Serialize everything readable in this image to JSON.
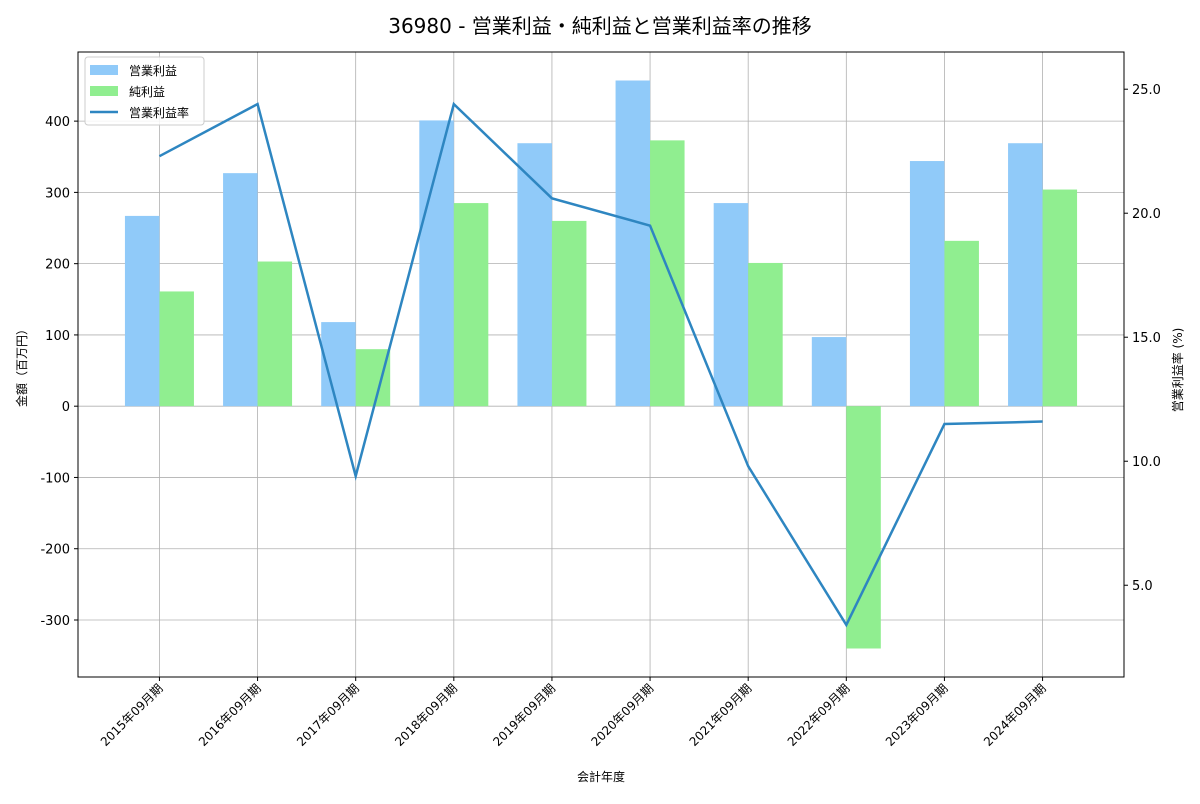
{
  "chart_data": {
    "type": "bar",
    "title": "36980 - 営業利益・純利益と営業利益率の推移",
    "xlabel": "会計年度",
    "ylabel": "金額（百万円）",
    "y2label": "営業利益率 (%)",
    "categories": [
      "2015年09月期",
      "2016年09月期",
      "2017年09月期",
      "2018年09月期",
      "2019年09月期",
      "2020年09月期",
      "2021年09月期",
      "2022年09月期",
      "2023年09月期",
      "2024年09月期"
    ],
    "series": [
      {
        "name": "営業利益",
        "type": "bar",
        "axis": "left",
        "color": "#90caf9",
        "values": [
          267,
          327,
          118,
          401,
          369,
          457,
          285,
          97,
          344,
          369
        ]
      },
      {
        "name": "純利益",
        "type": "bar",
        "axis": "left",
        "color": "#90ee90",
        "values": [
          161,
          203,
          80,
          285,
          260,
          373,
          201,
          -340,
          232,
          304
        ]
      },
      {
        "name": "営業利益率",
        "type": "line",
        "axis": "right",
        "color": "#2e86c1",
        "values": [
          22.3,
          24.4,
          9.4,
          24.4,
          20.6,
          19.5,
          9.8,
          3.4,
          11.5,
          11.6
        ]
      }
    ],
    "ylim": [
      -380,
      497
    ],
    "y2lim": [
      1.3,
      26.5
    ],
    "yticks": [
      -300,
      -200,
      -100,
      0,
      100,
      200,
      300,
      400
    ],
    "y2ticks": [
      "5.0",
      "10.0",
      "15.0",
      "20.0",
      "25.0"
    ],
    "grid": true,
    "legend": "top-left"
  }
}
